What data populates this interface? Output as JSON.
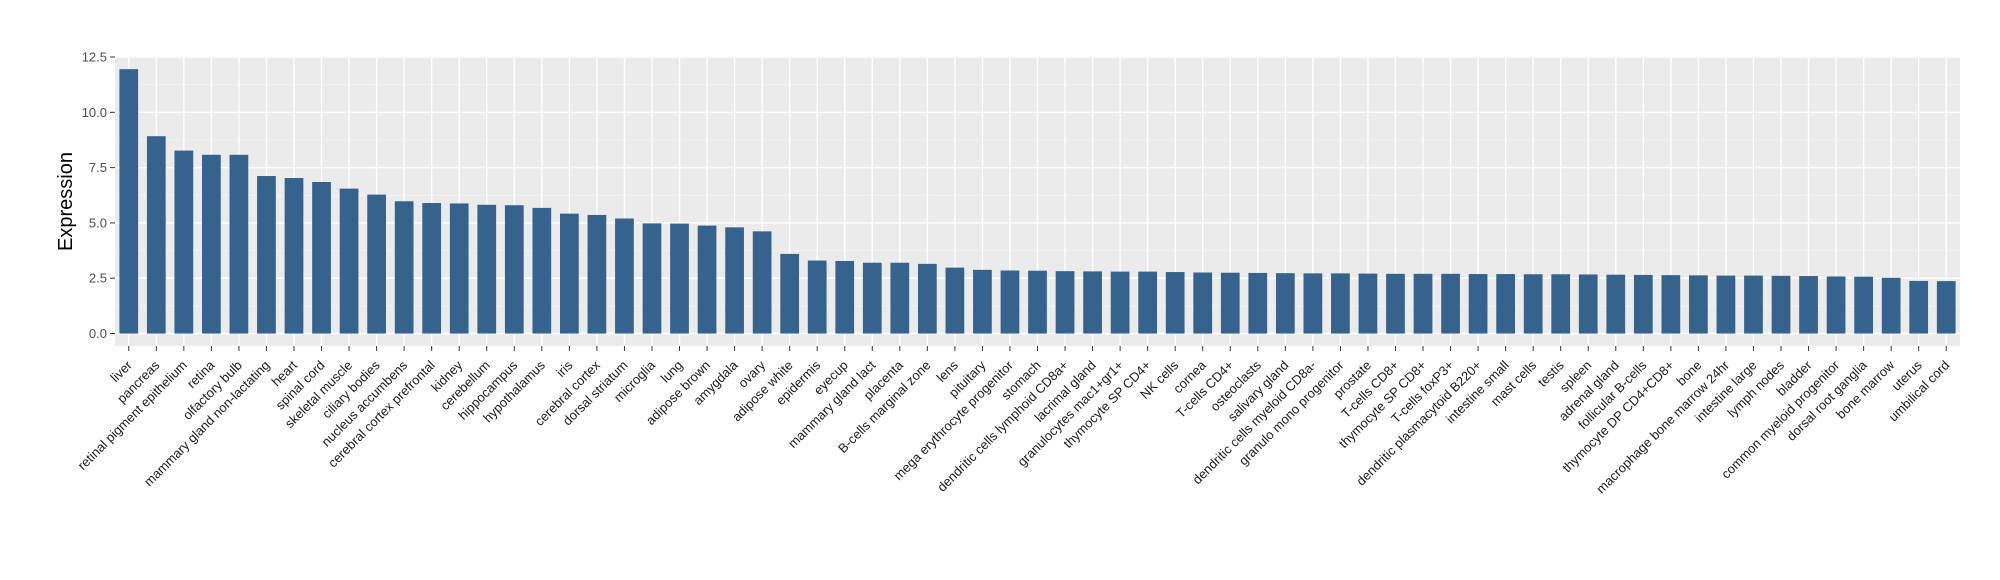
{
  "chart_data": {
    "type": "bar",
    "title": "",
    "xlabel": "",
    "ylabel": "Expression",
    "ylim": [
      0,
      12.5
    ],
    "yticks": [
      0.0,
      2.5,
      5.0,
      7.5,
      10.0,
      12.5
    ],
    "ytick_labels": [
      "0.0",
      "2.5",
      "5.0",
      "7.5",
      "10.0",
      "12.5"
    ],
    "grid": true,
    "legend": "none",
    "colors": {
      "bar": "#35638e",
      "panel": "#ebebeb",
      "grid_major": "#ffffff",
      "grid_minor": "#f5f5f5"
    },
    "categories": [
      "liver",
      "pancreas",
      "retinal pigment epithelium",
      "retina",
      "olfactory bulb",
      "mammary gland non-lactating",
      "heart",
      "spinal cord",
      "skeletal muscle",
      "ciliary bodies",
      "nucleus accumbens",
      "cerebral cortex prefrontal",
      "kidney",
      "cerebellum",
      "hippocampus",
      "hypothalamus",
      "iris",
      "cerebral cortex",
      "dorsal striatum",
      "microglia",
      "lung",
      "adipose brown",
      "amygdala",
      "ovary",
      "adipose white",
      "epidermis",
      "eyecup",
      "mammary gland lact",
      "placenta",
      "B-cells marginal zone",
      "lens",
      "pituitary",
      "mega erythrocyte progenitor",
      "stomach",
      "dendritic cells lymphoid CD8a+",
      "lacrimal gland",
      "granulocytes mac1+gr1+",
      "thymocyte SP CD4+",
      "NK cells",
      "cornea",
      "T-cells CD4+",
      "osteoclasts",
      "salivary gland",
      "dendritic cells myeloid CD8a-",
      "granulo mono progenitor",
      "prostate",
      "T-cells CD8+",
      "thymocyte SP CD8+",
      "T-cells foxP3+",
      "dendritic plasmacytoid B220+",
      "intestine small",
      "mast cells",
      "testis",
      "spleen",
      "adrenal gland",
      "follicular B-cells",
      "thymocyte DP CD4+CD8+",
      "bone",
      "macrophage bone marrow 24hr",
      "intestine large",
      "lymph nodes",
      "bladder",
      "common myeloid progenitor",
      "dorsal root ganglia",
      "bone marrow",
      "uterus",
      "umbilical cord"
    ],
    "values": [
      11.95,
      8.92,
      8.27,
      8.08,
      8.08,
      7.12,
      7.03,
      6.85,
      6.55,
      6.28,
      5.98,
      5.9,
      5.88,
      5.82,
      5.8,
      5.68,
      5.42,
      5.36,
      5.2,
      4.98,
      4.97,
      4.88,
      4.8,
      4.62,
      3.6,
      3.3,
      3.28,
      3.2,
      3.2,
      3.15,
      2.98,
      2.88,
      2.85,
      2.84,
      2.82,
      2.81,
      2.8,
      2.8,
      2.78,
      2.76,
      2.75,
      2.74,
      2.73,
      2.72,
      2.72,
      2.71,
      2.7,
      2.7,
      2.7,
      2.69,
      2.69,
      2.68,
      2.68,
      2.67,
      2.66,
      2.65,
      2.64,
      2.63,
      2.62,
      2.62,
      2.61,
      2.6,
      2.58,
      2.57,
      2.52,
      2.38,
      2.37
    ]
  }
}
